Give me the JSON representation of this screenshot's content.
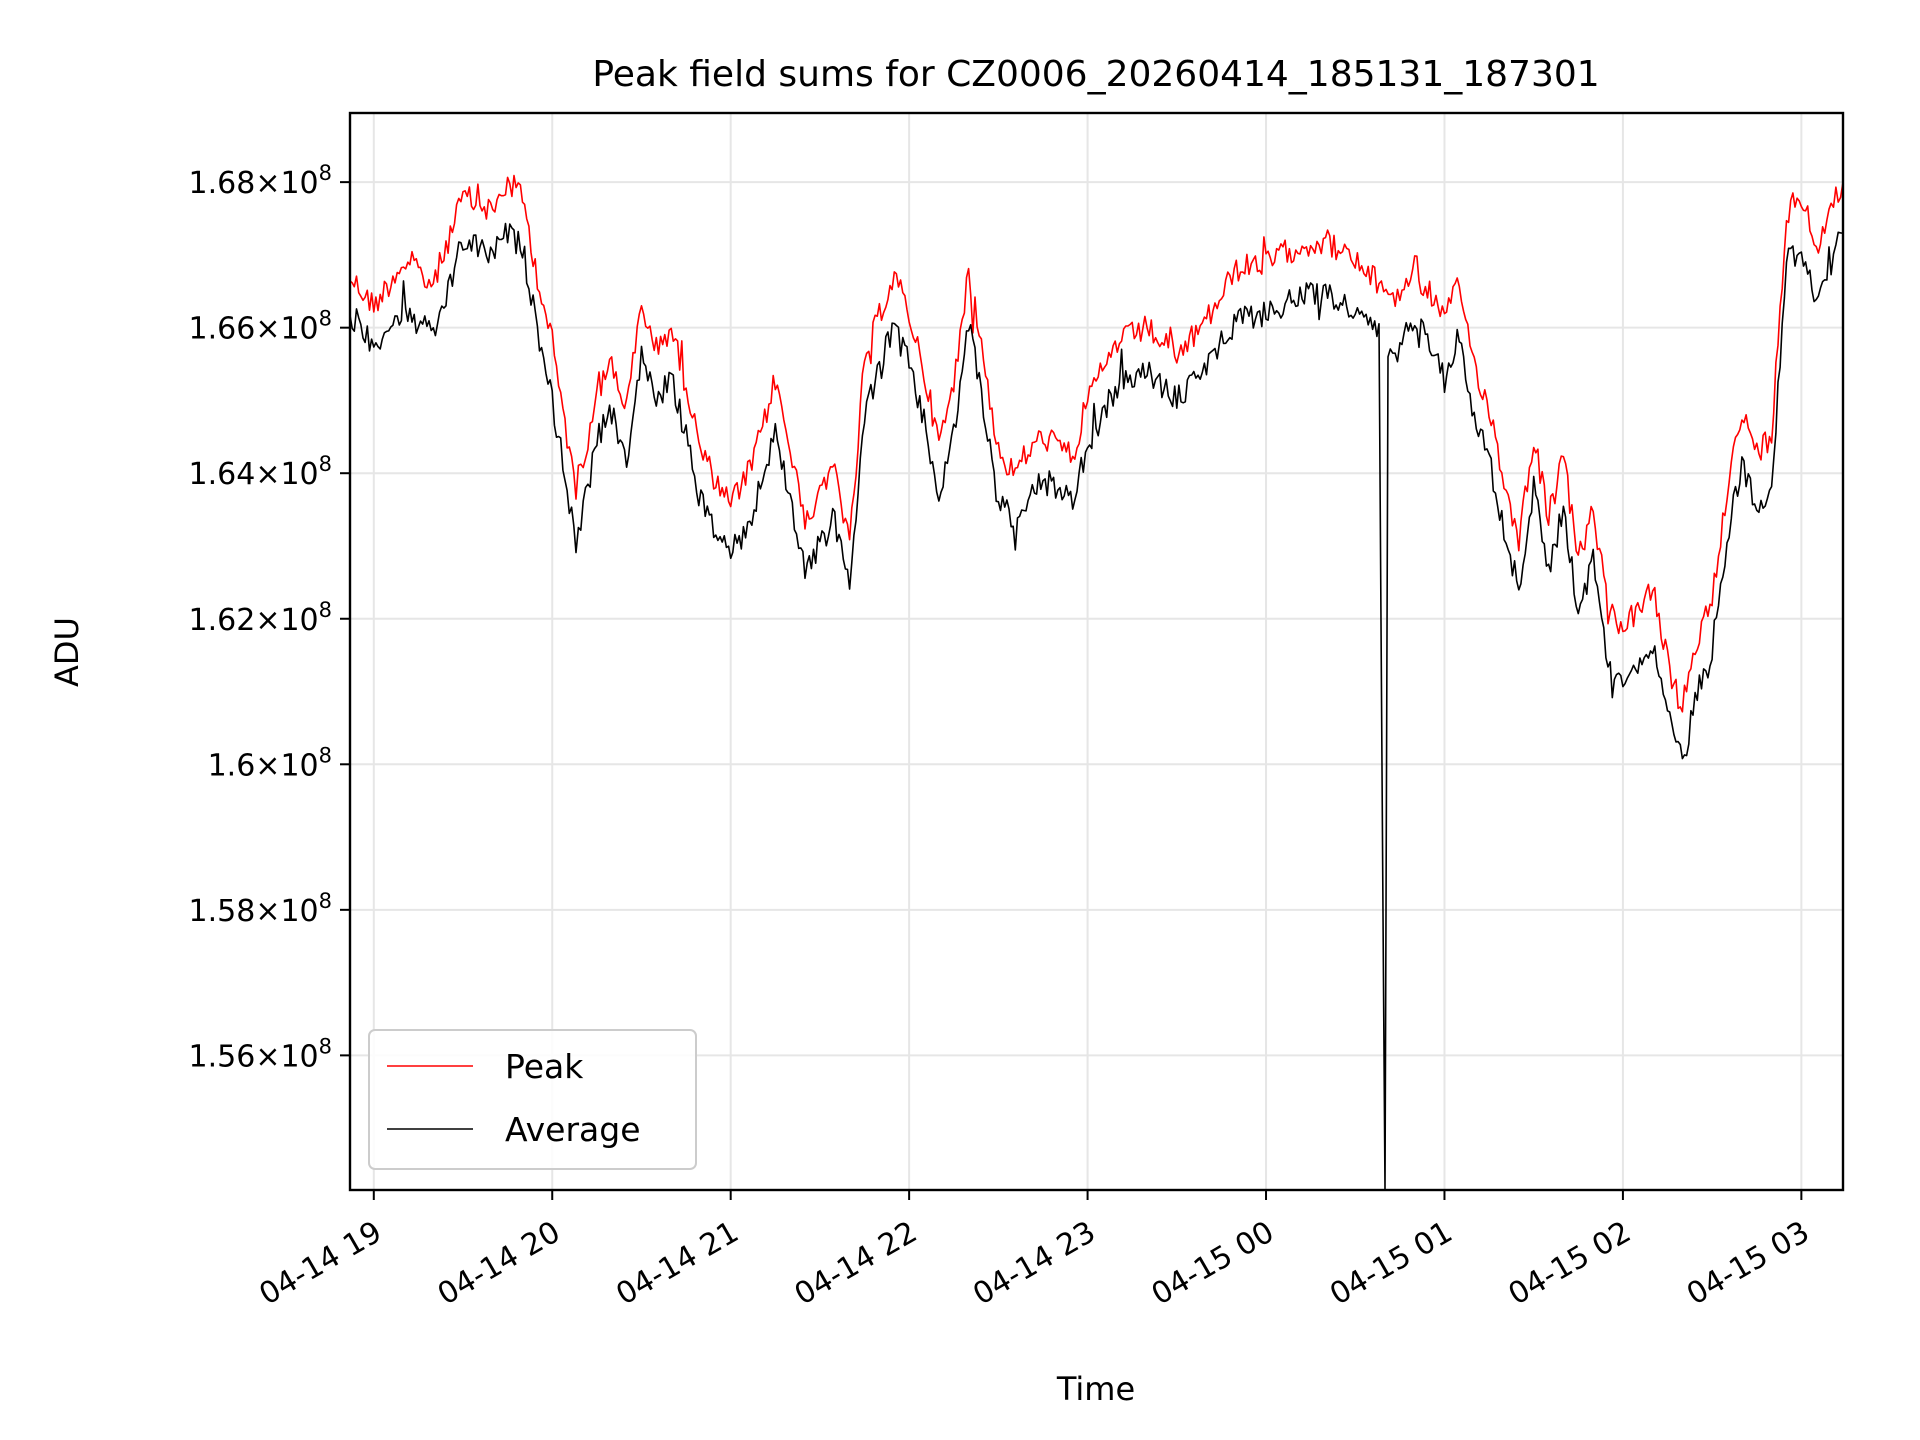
{
  "chart_data": {
    "type": "line",
    "title": "Peak field sums for CZ0006_20260414_185131_187301",
    "xlabel": "Time",
    "ylabel": "ADU",
    "xlim": [
      "2026-04-14 18:52",
      "2026-04-15 03:14"
    ],
    "ylim": [
      154150000.0,
      168950000.0
    ],
    "grid": true,
    "legend_position": "lower-left",
    "x_ticks": [
      {
        "t": "2026-04-14 19:00",
        "label": "04-14 19"
      },
      {
        "t": "2026-04-14 20:00",
        "label": "04-14 20"
      },
      {
        "t": "2026-04-14 21:00",
        "label": "04-14 21"
      },
      {
        "t": "2026-04-14 22:00",
        "label": "04-14 22"
      },
      {
        "t": "2026-04-14 23:00",
        "label": "04-14 23"
      },
      {
        "t": "2026-04-15 00:00",
        "label": "04-15 00"
      },
      {
        "t": "2026-04-15 01:00",
        "label": "04-15 01"
      },
      {
        "t": "2026-04-15 02:00",
        "label": "04-15 02"
      },
      {
        "t": "2026-04-15 03:00",
        "label": "04-15 03"
      }
    ],
    "y_ticks": [
      {
        "v": 156000000.0,
        "mant": "1.56",
        "exp": "8"
      },
      {
        "v": 158000000.0,
        "mant": "1.58",
        "exp": "8"
      },
      {
        "v": 160000000.0,
        "mant": "1.6",
        "exp": "8"
      },
      {
        "v": 162000000.0,
        "mant": "1.62",
        "exp": "8"
      },
      {
        "v": 164000000.0,
        "mant": "1.64",
        "exp": "8"
      },
      {
        "v": 166000000.0,
        "mant": "1.66",
        "exp": "8"
      },
      {
        "v": 168000000.0,
        "mant": "1.68",
        "exp": "8"
      }
    ],
    "series": [
      {
        "name": "Peak",
        "color": "#ff0000",
        "points": [
          [
            "2026-04-14 18:52",
            166700000.0
          ],
          [
            "2026-04-14 19:00",
            166300000.0
          ],
          [
            "2026-04-14 19:10",
            166900000.0
          ],
          [
            "2026-04-14 19:20",
            166600000.0
          ],
          [
            "2026-04-14 19:25",
            167200000.0
          ],
          [
            "2026-04-14 19:30",
            167800000.0
          ],
          [
            "2026-04-14 19:40",
            167600000.0
          ],
          [
            "2026-04-14 19:45",
            168000000.0
          ],
          [
            "2026-04-14 19:50",
            167800000.0
          ],
          [
            "2026-04-14 19:55",
            166700000.0
          ],
          [
            "2026-04-14 20:00",
            165800000.0
          ],
          [
            "2026-04-14 20:05",
            164500000.0
          ],
          [
            "2026-04-14 20:08",
            163800000.0
          ],
          [
            "2026-04-14 20:12",
            164500000.0
          ],
          [
            "2026-04-14 20:15",
            165200000.0
          ],
          [
            "2026-04-14 20:20",
            165500000.0
          ],
          [
            "2026-04-14 20:25",
            164900000.0
          ],
          [
            "2026-04-14 20:30",
            166300000.0
          ],
          [
            "2026-04-14 20:35",
            165700000.0
          ],
          [
            "2026-04-14 20:40",
            166000000.0
          ],
          [
            "2026-04-14 20:45",
            165200000.0
          ],
          [
            "2026-04-14 20:50",
            164300000.0
          ],
          [
            "2026-04-14 20:55",
            163900000.0
          ],
          [
            "2026-04-14 21:00",
            163600000.0
          ],
          [
            "2026-04-14 21:05",
            163900000.0
          ],
          [
            "2026-04-14 21:10",
            164500000.0
          ],
          [
            "2026-04-14 21:15",
            165300000.0
          ],
          [
            "2026-04-14 21:20",
            164300000.0
          ],
          [
            "2026-04-14 21:25",
            163400000.0
          ],
          [
            "2026-04-14 21:30",
            163700000.0
          ],
          [
            "2026-04-14 21:35",
            164100000.0
          ],
          [
            "2026-04-14 21:40",
            163000000.0
          ],
          [
            "2026-04-14 21:45",
            165500000.0
          ],
          [
            "2026-04-14 21:50",
            166200000.0
          ],
          [
            "2026-04-14 21:55",
            166700000.0
          ],
          [
            "2026-04-14 22:00",
            166200000.0
          ],
          [
            "2026-04-14 22:05",
            165400000.0
          ],
          [
            "2026-04-14 22:10",
            164400000.0
          ],
          [
            "2026-04-14 22:15",
            165200000.0
          ],
          [
            "2026-04-14 22:20",
            166800000.0
          ],
          [
            "2026-04-14 22:25",
            165600000.0
          ],
          [
            "2026-04-14 22:30",
            164300000.0
          ],
          [
            "2026-04-14 22:35",
            164000000.0
          ],
          [
            "2026-04-14 22:40",
            164300000.0
          ],
          [
            "2026-04-14 22:45",
            164500000.0
          ],
          [
            "2026-04-14 22:50",
            164400000.0
          ],
          [
            "2026-04-14 22:55",
            164200000.0
          ],
          [
            "2026-04-14 23:00",
            165000000.0
          ],
          [
            "2026-04-14 23:10",
            165800000.0
          ],
          [
            "2026-04-14 23:20",
            166000000.0
          ],
          [
            "2026-04-14 23:30",
            165600000.0
          ],
          [
            "2026-04-14 23:40",
            166100000.0
          ],
          [
            "2026-04-14 23:50",
            166800000.0
          ],
          [
            "2026-04-15 00:00",
            166900000.0
          ],
          [
            "2026-04-15 00:10",
            167100000.0
          ],
          [
            "2026-04-15 00:20",
            167200000.0
          ],
          [
            "2026-04-15 00:30",
            166900000.0
          ],
          [
            "2026-04-15 00:38",
            166600000.0
          ],
          [
            "2026-04-15 00:45",
            166400000.0
          ],
          [
            "2026-04-15 00:50",
            166900000.0
          ],
          [
            "2026-04-15 00:55",
            166500000.0
          ],
          [
            "2026-04-15 01:00",
            166100000.0
          ],
          [
            "2026-04-15 01:05",
            166600000.0
          ],
          [
            "2026-04-15 01:10",
            165500000.0
          ],
          [
            "2026-04-15 01:15",
            164900000.0
          ],
          [
            "2026-04-15 01:20",
            163900000.0
          ],
          [
            "2026-04-15 01:25",
            163100000.0
          ],
          [
            "2026-04-15 01:30",
            164500000.0
          ],
          [
            "2026-04-15 01:35",
            163400000.0
          ],
          [
            "2026-04-15 01:40",
            164200000.0
          ],
          [
            "2026-04-15 01:45",
            162800000.0
          ],
          [
            "2026-04-15 01:50",
            163500000.0
          ],
          [
            "2026-04-15 01:55",
            162100000.0
          ],
          [
            "2026-04-15 02:00",
            161900000.0
          ],
          [
            "2026-04-15 02:05",
            162100000.0
          ],
          [
            "2026-04-15 02:10",
            162400000.0
          ],
          [
            "2026-04-15 02:15",
            161400000.0
          ],
          [
            "2026-04-15 02:20",
            160700000.0
          ],
          [
            "2026-04-15 02:25",
            161700000.0
          ],
          [
            "2026-04-15 02:30",
            162300000.0
          ],
          [
            "2026-04-15 02:35",
            163800000.0
          ],
          [
            "2026-04-15 02:40",
            164800000.0
          ],
          [
            "2026-04-15 02:45",
            164300000.0
          ],
          [
            "2026-04-15 02:50",
            164500000.0
          ],
          [
            "2026-04-15 02:55",
            167600000.0
          ],
          [
            "2026-04-15 03:00",
            167800000.0
          ],
          [
            "2026-04-15 03:05",
            167100000.0
          ],
          [
            "2026-04-15 03:10",
            167600000.0
          ],
          [
            "2026-04-15 03:14",
            168000000.0
          ]
        ]
      },
      {
        "name": "Average",
        "color": "#000000",
        "points": [
          [
            "2026-04-14 18:52",
            166100000.0
          ],
          [
            "2026-04-14 19:00",
            165800000.0
          ],
          [
            "2026-04-14 19:10",
            166200000.0
          ],
          [
            "2026-04-14 19:20",
            165900000.0
          ],
          [
            "2026-04-14 19:25",
            166500000.0
          ],
          [
            "2026-04-14 19:30",
            167200000.0
          ],
          [
            "2026-04-14 19:40",
            167000000.0
          ],
          [
            "2026-04-14 19:45",
            167300000.0
          ],
          [
            "2026-04-14 19:50",
            167100000.0
          ],
          [
            "2026-04-14 19:55",
            166000000.0
          ],
          [
            "2026-04-14 20:00",
            165000000.0
          ],
          [
            "2026-04-14 20:05",
            163800000.0
          ],
          [
            "2026-04-14 20:08",
            163000000.0
          ],
          [
            "2026-04-14 20:12",
            163800000.0
          ],
          [
            "2026-04-14 20:15",
            164500000.0
          ],
          [
            "2026-04-14 20:20",
            164800000.0
          ],
          [
            "2026-04-14 20:25",
            164200000.0
          ],
          [
            "2026-04-14 20:30",
            165600000.0
          ],
          [
            "2026-04-14 20:35",
            165000000.0
          ],
          [
            "2026-04-14 20:40",
            165300000.0
          ],
          [
            "2026-04-14 20:45",
            164500000.0
          ],
          [
            "2026-04-14 20:50",
            163600000.0
          ],
          [
            "2026-04-14 20:55",
            163200000.0
          ],
          [
            "2026-04-14 21:00",
            162900000.0
          ],
          [
            "2026-04-14 21:05",
            163200000.0
          ],
          [
            "2026-04-14 21:10",
            163800000.0
          ],
          [
            "2026-04-14 21:15",
            164600000.0
          ],
          [
            "2026-04-14 21:20",
            163600000.0
          ],
          [
            "2026-04-14 21:25",
            162700000.0
          ],
          [
            "2026-04-14 21:30",
            163000000.0
          ],
          [
            "2026-04-14 21:35",
            163400000.0
          ],
          [
            "2026-04-14 21:40",
            162400000.0
          ],
          [
            "2026-04-14 21:45",
            164800000.0
          ],
          [
            "2026-04-14 21:50",
            165500000.0
          ],
          [
            "2026-04-14 21:55",
            166000000.0
          ],
          [
            "2026-04-14 22:00",
            165500000.0
          ],
          [
            "2026-04-14 22:05",
            164700000.0
          ],
          [
            "2026-04-14 22:10",
            163700000.0
          ],
          [
            "2026-04-14 22:15",
            164500000.0
          ],
          [
            "2026-04-14 22:20",
            166100000.0
          ],
          [
            "2026-04-14 22:25",
            164900000.0
          ],
          [
            "2026-04-14 22:30",
            163600000.0
          ],
          [
            "2026-04-14 22:35",
            163400000.0
          ],
          [
            "2026-04-14 22:40",
            163700000.0
          ],
          [
            "2026-04-14 22:45",
            163900000.0
          ],
          [
            "2026-04-14 22:50",
            163800000.0
          ],
          [
            "2026-04-14 22:55",
            163600000.0
          ],
          [
            "2026-04-14 23:00",
            164400000.0
          ],
          [
            "2026-04-14 23:10",
            165200000.0
          ],
          [
            "2026-04-14 23:20",
            165400000.0
          ],
          [
            "2026-04-14 23:30",
            165000000.0
          ],
          [
            "2026-04-14 23:40",
            165500000.0
          ],
          [
            "2026-04-14 23:50",
            166100000.0
          ],
          [
            "2026-04-15 00:00",
            166200000.0
          ],
          [
            "2026-04-15 00:10",
            166400000.0
          ],
          [
            "2026-04-15 00:20",
            166500000.0
          ],
          [
            "2026-04-15 00:30",
            166200000.0
          ],
          [
            "2026-04-15 00:38",
            165900000.0
          ],
          [
            "2026-04-15 00:40",
            154150000.0
          ],
          [
            "2026-04-15 00:41",
            165600000.0
          ],
          [
            "2026-04-15 00:45",
            165700000.0
          ],
          [
            "2026-04-15 00:50",
            166200000.0
          ],
          [
            "2026-04-15 00:55",
            165800000.0
          ],
          [
            "2026-04-15 01:00",
            165400000.0
          ],
          [
            "2026-04-15 01:05",
            165900000.0
          ],
          [
            "2026-04-15 01:10",
            164800000.0
          ],
          [
            "2026-04-15 01:15",
            164200000.0
          ],
          [
            "2026-04-15 01:20",
            163200000.0
          ],
          [
            "2026-04-15 01:25",
            162400000.0
          ],
          [
            "2026-04-15 01:30",
            163800000.0
          ],
          [
            "2026-04-15 01:35",
            162700000.0
          ],
          [
            "2026-04-15 01:40",
            163500000.0
          ],
          [
            "2026-04-15 01:45",
            162100000.0
          ],
          [
            "2026-04-15 01:50",
            162800000.0
          ],
          [
            "2026-04-15 01:55",
            161400000.0
          ],
          [
            "2026-04-15 02:00",
            161200000.0
          ],
          [
            "2026-04-15 02:05",
            161400000.0
          ],
          [
            "2026-04-15 02:10",
            161700000.0
          ],
          [
            "2026-04-15 02:15",
            160700000.0
          ],
          [
            "2026-04-15 02:20",
            160000000.0
          ],
          [
            "2026-04-15 02:25",
            161000000.0
          ],
          [
            "2026-04-15 02:30",
            161600000.0
          ],
          [
            "2026-04-15 02:35",
            163100000.0
          ],
          [
            "2026-04-15 02:40",
            164100000.0
          ],
          [
            "2026-04-15 02:45",
            163600000.0
          ],
          [
            "2026-04-15 02:50",
            163800000.0
          ],
          [
            "2026-04-15 02:55",
            166900000.0
          ],
          [
            "2026-04-15 03:00",
            167100000.0
          ],
          [
            "2026-04-15 03:05",
            166400000.0
          ],
          [
            "2026-04-15 03:10",
            166900000.0
          ],
          [
            "2026-04-15 03:14",
            167300000.0
          ]
        ]
      }
    ]
  }
}
